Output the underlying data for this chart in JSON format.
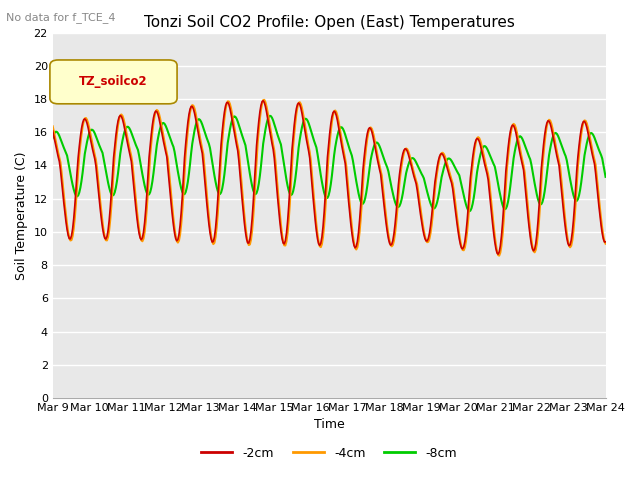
{
  "title": "Tonzi Soil CO2 Profile: Open (East) Temperatures",
  "subtitle": "No data for f_TCE_4",
  "xlabel": "Time",
  "ylabel": "Soil Temperature (C)",
  "ylim": [
    0,
    22
  ],
  "yticks": [
    0,
    2,
    4,
    6,
    8,
    10,
    12,
    14,
    16,
    18,
    20,
    22
  ],
  "x_labels": [
    "Mar 9",
    "Mar 10",
    "Mar 11",
    "Mar 12",
    "Mar 13",
    "Mar 14",
    "Mar 15",
    "Mar 16",
    "Mar 17",
    "Mar 18",
    "Mar 19",
    "Mar 20",
    "Mar 21",
    "Mar 22",
    "Mar 23",
    "Mar 24"
  ],
  "legend_label": "TZ_soilco2",
  "series_labels": [
    "-2cm",
    "-4cm",
    "-8cm"
  ],
  "series_colors": [
    "#cc0000",
    "#ff9900",
    "#00cc00"
  ],
  "background_color": "#ffffff",
  "plot_bg_color": "#e8e8e8",
  "grid_color": "#ffffff",
  "title_fontsize": 11,
  "axis_fontsize": 9,
  "tick_fontsize": 8,
  "figsize": [
    6.4,
    4.8
  ],
  "dpi": 100
}
